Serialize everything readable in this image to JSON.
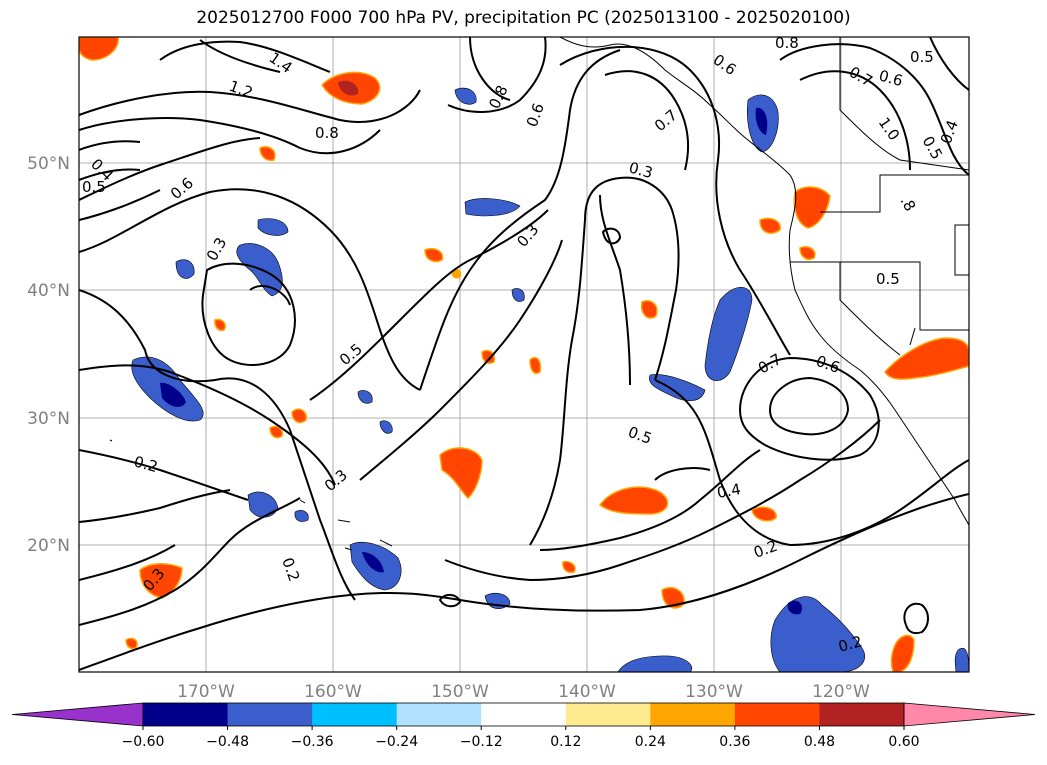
{
  "title": "2025012700 F000 700 hPa PV, precipitation PC (2025013100 - 2025020100)",
  "map": {
    "lon_labels": [
      "170°W",
      "160°W",
      "150°W",
      "140°W",
      "130°W",
      "120°W"
    ],
    "lat_labels": [
      "50°N",
      "40°N",
      "30°N",
      "20°N"
    ],
    "contour_labels": [
      "1.4",
      "1.2",
      "0.8",
      "0.8",
      "0.6",
      "0.7",
      "0.6",
      "0.8",
      "0.7",
      "0.6",
      "0.5",
      "1.0",
      "0.5",
      "0.4",
      "0.5",
      "0.6",
      "0.3",
      "0.3",
      "0.3",
      "0.5",
      "0.7",
      "0.6",
      "0.5",
      "0.3",
      "0.2",
      "0.4",
      "0.2",
      "0.2",
      "0.3",
      "0.2",
      "0.4",
      "0.5",
      ".8"
    ]
  },
  "colorbar": {
    "ticks": [
      "−0.60",
      "−0.48",
      "−0.36",
      "−0.24",
      "−0.12",
      "0.12",
      "0.24",
      "0.36",
      "0.48",
      "0.60"
    ],
    "colors": [
      "#9932cc",
      "#00008b",
      "#3a5fcd",
      "#00bfff",
      "#b0e2ff",
      "#ffffff",
      "#ffeb8f",
      "#ffa500",
      "#ff4500",
      "#b22222",
      "#ff88aa"
    ]
  }
}
